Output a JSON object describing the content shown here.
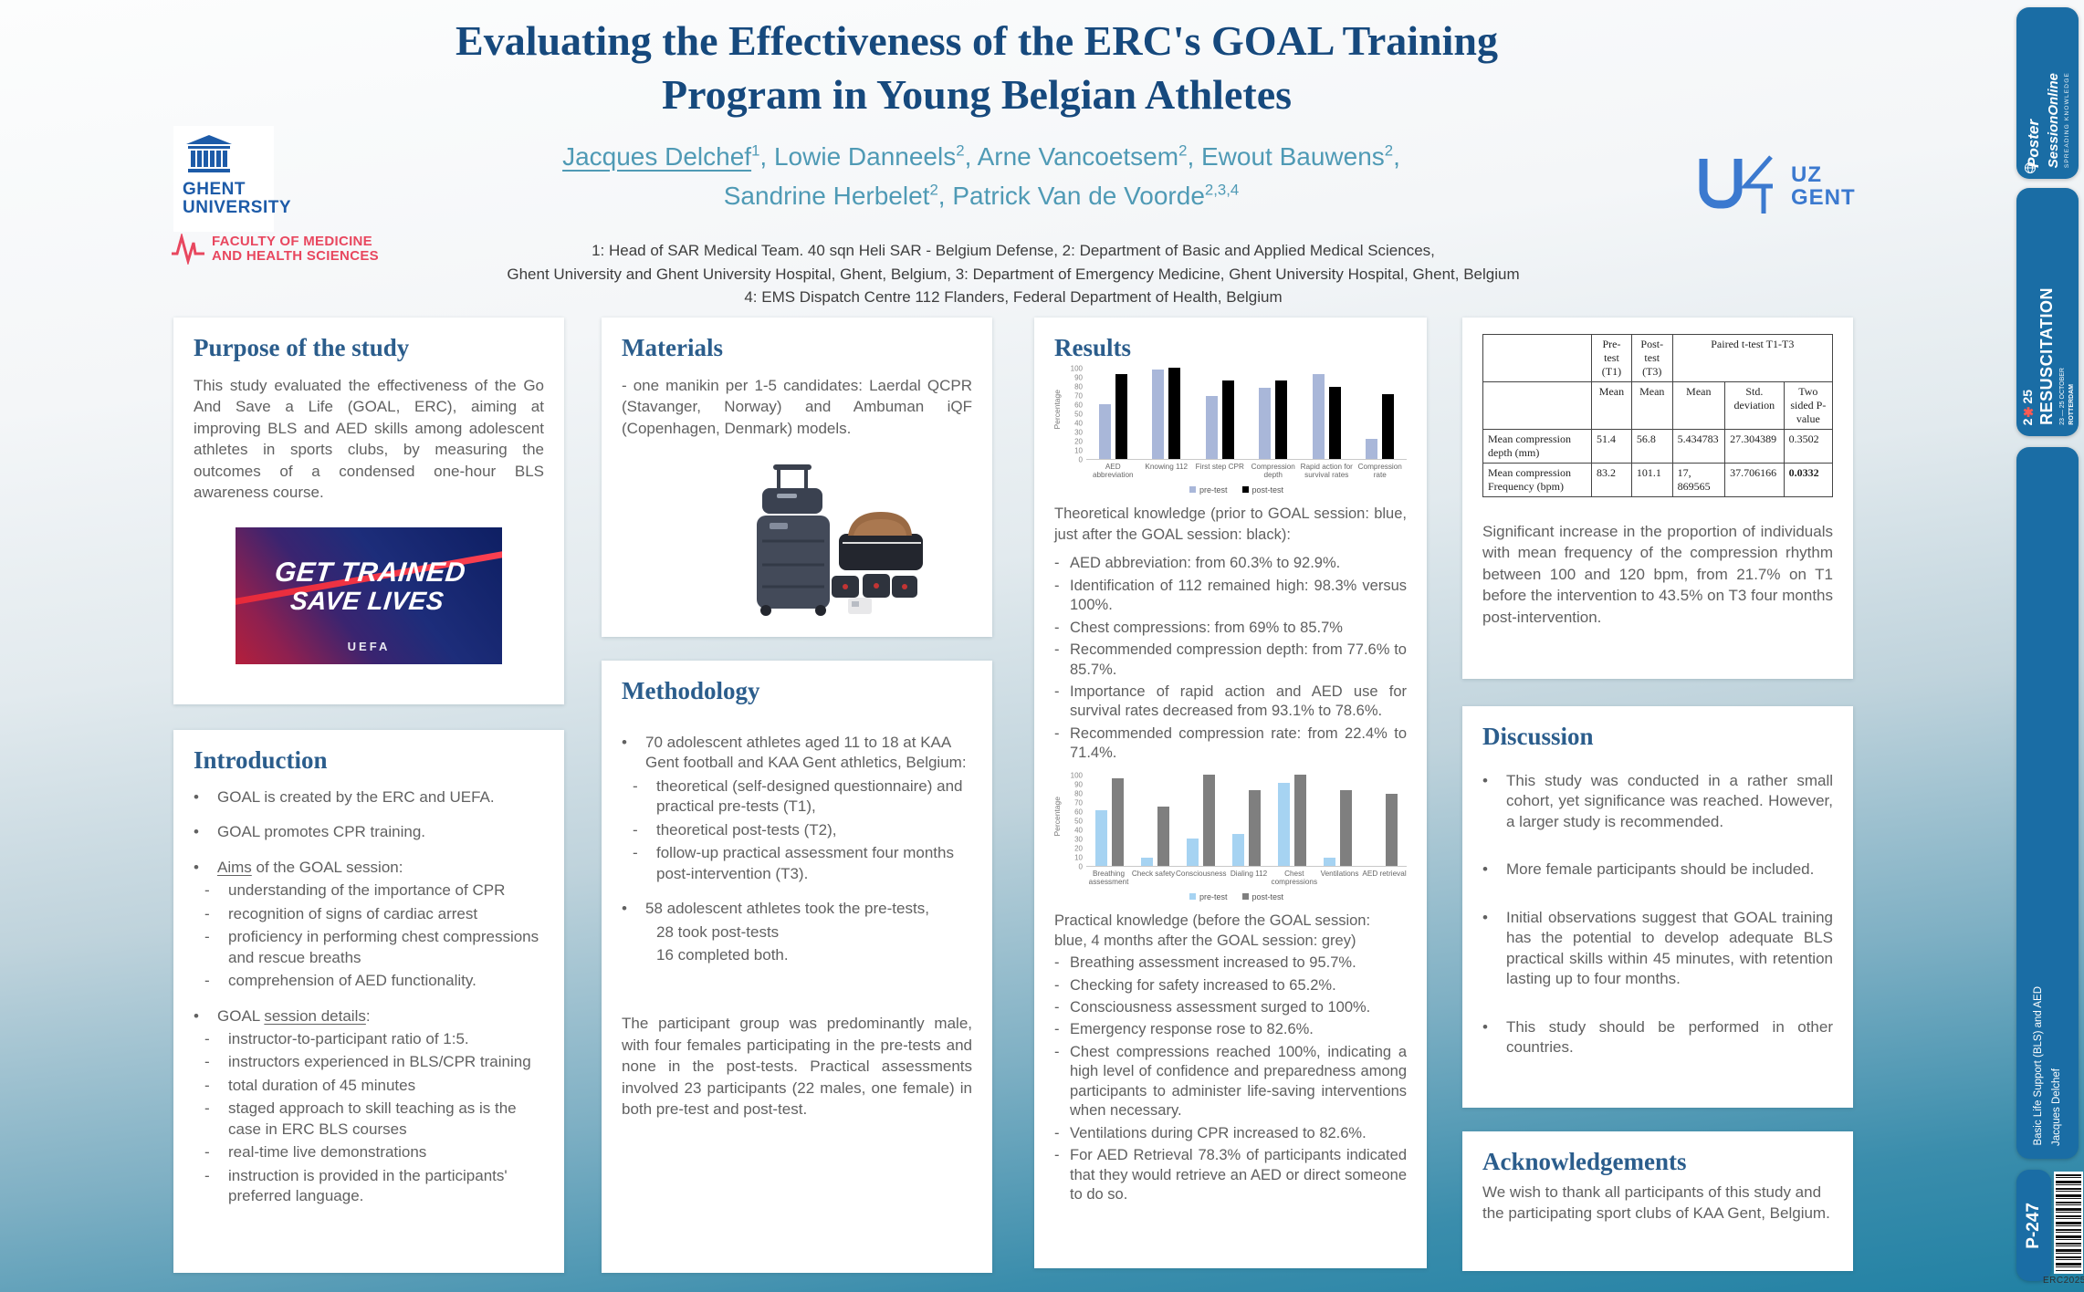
{
  "header": {
    "title_line1": "Evaluating the Effectiveness of the ERC's GOAL Training",
    "title_line2": "Program in Young Belgian Athletes",
    "authors": {
      "line1": [
        {
          "name": "Jacques Delchef",
          "sup": "1",
          "underline": true
        },
        {
          "name": "Lowie Danneels",
          "sup": "2"
        },
        {
          "name": "Arne Vancoetsem",
          "sup": "2"
        },
        {
          "name": "Ewout Bauwens",
          "sup": "2"
        }
      ],
      "line1_trailing": ",",
      "line2": [
        {
          "name": "Sandrine Herbelet",
          "sup": "2"
        },
        {
          "name": "Patrick Van de Voorde",
          "sup": "2,3,4"
        }
      ]
    },
    "affiliations": {
      "line1": "1: Head of SAR Medical Team. 40 sqn Heli SAR - Belgium Defense, 2: Department of Basic and Applied Medical Sciences,",
      "line2": "Ghent University and Ghent University Hospital, Ghent, Belgium, 3: Department of Emergency Medicine, Ghent University Hospital, Ghent, Belgium",
      "line3": "4: EMS Dispatch Centre 112 Flanders, Federal Department of Health, Belgium"
    },
    "logos": {
      "ghent": {
        "line1": "GHENT",
        "line2": "UNIVERSITY",
        "faculty_line1": "FACULTY OF MEDICINE",
        "faculty_line2": "AND HEALTH SCIENCES"
      },
      "uzgent": {
        "line1": "UZ",
        "line2": "GENT"
      }
    }
  },
  "purpose": {
    "title": "Purpose of the study",
    "body": "This study evaluated the effectiveness of the Go And Save a Life (GOAL, ERC), aiming at improving BLS and AED skills among adolescent athletes in sports clubs, by measuring the outcomes of a condensed one-hour BLS awareness course.",
    "banner": {
      "line1": "GET TRAINED",
      "line2": "SAVE LIVES",
      "footer": "UEFA"
    }
  },
  "introduction": {
    "title": "Introduction",
    "items": [
      {
        "m": "•",
        "t": "GOAL is  created by the ERC and UEFA."
      },
      {
        "m": "•",
        "t": "GOAL promotes CPR training.",
        "gap": true
      },
      {
        "m": "•",
        "seg": [
          {
            "u": "Aims"
          },
          " of the GOAL session:"
        ],
        "gap": true
      },
      {
        "m": "-",
        "t": "understanding of the importance of CPR",
        "indent": 1
      },
      {
        "m": "-",
        "t": "recognition of signs of cardiac arrest",
        "indent": 1
      },
      {
        "m": "-",
        "t": "proficiency in performing chest compressions and rescue breaths",
        "indent": 1
      },
      {
        "m": "-",
        "t": "comprehension of AED functionality.",
        "indent": 1
      },
      {
        "m": "•",
        "seg": [
          "GOAL ",
          {
            "u": "session details"
          },
          ":"
        ],
        "gap": true
      },
      {
        "m": "-",
        "t": "instructor-to-participant ratio of 1:5.",
        "indent": 1
      },
      {
        "m": "-",
        "t": "instructors experienced in BLS/CPR training",
        "indent": 1
      },
      {
        "m": "-",
        "t": "total duration of 45 minutes",
        "indent": 1
      },
      {
        "m": "-",
        "t": "staged approach to skill teaching as is the case in ERC BLS courses",
        "indent": 1
      },
      {
        "m": "-",
        "t": "real-time live demonstrations",
        "indent": 1
      },
      {
        "m": "-",
        "t": "instruction is provided in the participants' preferred language.",
        "indent": 1
      }
    ]
  },
  "materials": {
    "title": "Materials",
    "body": "- one manikin per 1-5 candidates: Laerdal QCPR (Stavanger, Norway) and Ambuman iQF (Copenhagen, Denmark) models."
  },
  "methodology": {
    "title": "Methodology",
    "items": [
      {
        "m": "•",
        "t": "70 adolescent athletes aged 11 to 18 at KAA Gent football and KAA Gent athletics, Belgium:"
      },
      {
        "m": "-",
        "t": "theoretical (self-designed questionnaire) and practical pre-tests (T1),",
        "indent": 1
      },
      {
        "m": "-",
        "t": "theoretical post-tests (T2),",
        "indent": 1
      },
      {
        "m": "-",
        "t": "follow-up practical assessment four months post-intervention (T3).",
        "indent": 1
      },
      {
        "m": "•",
        "t": "58 adolescent athletes took the pre-tests,",
        "gap": true
      },
      {
        "m": "",
        "t": "28 took post-tests",
        "indent": 1
      },
      {
        "m": "",
        "t": "16 completed both.",
        "indent": 1
      }
    ],
    "paragraph": "The participant group was predominantly male, with four females participating in the pre-tests and none in the post-tests. Practical assessments involved 23 participants (22 males, one female) in both pre-test and post-test."
  },
  "results": {
    "title": "Results",
    "theoretical_intro": "Theoretical knowledge (prior to GOAL session: blue, just after the GOAL session: black):",
    "theoretical_items": [
      {
        "m": "-",
        "t": "AED abbreviation: from 60.3% to 92.9%."
      },
      {
        "m": "-",
        "t": "Identification of 112 remained high: 98.3% versus 100%."
      },
      {
        "m": "-",
        "t": "Chest compressions: from 69% to 85.7%"
      },
      {
        "m": "-",
        "t": "Recommended compression depth: from 77.6% to 85.7%."
      },
      {
        "m": "-",
        "t": "Importance of rapid action and AED use for survival rates decreased from 93.1% to 78.6%."
      },
      {
        "m": "-",
        "t": "Recommended compression rate: from 22.4% to 71.4%."
      }
    ],
    "practical_intro": "Practical knowledge (before the GOAL session: blue, 4 months after the GOAL session: grey)",
    "practical_items": [
      {
        "m": "-",
        "t": "Breathing assessment increased  to 95.7%."
      },
      {
        "m": "-",
        "t": "Checking for safety increased to 65.2%."
      },
      {
        "m": "-",
        "t": "Consciousness assessment surged to 100%."
      },
      {
        "m": "-",
        "t": "Emergency response rose to 82.6%."
      },
      {
        "m": "-",
        "t": "Chest compressions reached 100%, indicating a high level of confidence and preparedness among participants to administer life-saving interventions when necessary."
      },
      {
        "m": "-",
        "t": "Ventilations during CPR increased to 82.6%."
      },
      {
        "m": "-",
        "t": "For AED Retrieval 78.3% of participants indicated that they would retrieve an AED or direct someone to do so."
      }
    ]
  },
  "stats": {
    "table": {
      "top_header": [
        "",
        "Pre-test (T1)",
        "Post-test (T3)",
        "Paired t-test  T1-T3"
      ],
      "top_colspans": [
        1,
        1,
        1,
        3
      ],
      "sub_header": [
        "",
        "Mean",
        "Mean",
        "Mean",
        "Std. deviation",
        "Two sided P-value"
      ],
      "rows": [
        [
          "Mean compression depth (mm)",
          "51.4",
          "56.8",
          "5.434783",
          "27.304389",
          "0.3502"
        ],
        [
          "Mean compression Frequency (bpm)",
          "83.2",
          "101.1",
          "17, 869565",
          "37.706166",
          {
            "v": "0.0332",
            "b": true
          }
        ]
      ]
    },
    "paragraph": "Significant increase in the proportion of individuals with mean frequency of the compression rhythm between 100 and 120 bpm, from 21.7% on T1 before the intervention to 43.5% on T3 four months post-intervention."
  },
  "discussion": {
    "title": "Discussion",
    "items": [
      {
        "m": "•",
        "t": "This study was conducted in a rather small cohort, yet significance was reached. However, a larger study is recommended."
      },
      {
        "m": "•",
        "t": "More female participants should be included."
      },
      {
        "m": "•",
        "t": "Initial observations suggest that GOAL training has the potential to develop adequate BLS practical skills within 45 minutes, with retention lasting up to four months."
      },
      {
        "m": "•",
        "t": "This study should be performed in other countries."
      }
    ]
  },
  "acknowledgements": {
    "title": "Acknowledgements",
    "body": "We wish to thank all participants of this study and the participating sport clubs of KAA Gent, Belgium."
  },
  "sidebar": {
    "badge1": {
      "line1": "Poster",
      "line2": "SessionOnline",
      "tagline": "SPREADING KNOWLEDGE"
    },
    "badge2": {
      "year_left": "2",
      "star": "✱",
      "year_right": "25",
      "name": "RESUSCITATION",
      "dates": "23 — 25 OCTOBER",
      "city": "ROTTERDAM"
    },
    "badge3": {
      "topic": "Basic Life Support (BLS) and AED",
      "author": "Jacques Delchef"
    },
    "badge4": {
      "code": "P-247",
      "footer": "ERC2025"
    }
  },
  "colors": {
    "badge_blue": "#1a6da5",
    "bottom_teal": "#2181a4",
    "title_blue": "#16497d",
    "heading_blue": "#2b5d8c",
    "authors_teal": "#4f9ab5",
    "ghent_blue": "#1d5ba8",
    "faculty_red": "#e8475f",
    "uz_blue": "#3b79cf"
  },
  "chart_data": [
    {
      "type": "bar",
      "title": "Theoretical knowledge pre/post GOAL session",
      "categories": [
        "AED abbreviation",
        "Knowing 112",
        "First step CPR",
        "Compression depth",
        "Rapid action for survival rates",
        "Compression rate"
      ],
      "series": [
        {
          "name": "pre-test",
          "color": "#a9b7d9",
          "values": [
            60.3,
            98.3,
            69,
            77.6,
            93.1,
            22.4
          ]
        },
        {
          "name": "post-test",
          "color": "#000000",
          "values": [
            92.9,
            100,
            85.7,
            85.7,
            78.6,
            71.4
          ]
        }
      ],
      "xlabel": "",
      "ylabel": "Percentage",
      "ylim": [
        0,
        100
      ],
      "ytick": 10,
      "grid": false,
      "legend_position": "bottom"
    },
    {
      "type": "bar",
      "title": "Practical knowledge before / 4 months after GOAL session",
      "categories": [
        "Breathing assessment",
        "Check safety",
        "Consciousness",
        "Dialing 112",
        "Chest compressions",
        "Ventilations",
        "AED retrieval"
      ],
      "series": [
        {
          "name": "pre-test",
          "color": "#a6d3f2",
          "values": [
            61,
            9,
            30,
            35,
            91,
            9,
            0
          ]
        },
        {
          "name": "post-test",
          "color": "#7f7f7f",
          "values": [
            95.7,
            65.2,
            100,
            82.6,
            100,
            82.6,
            78.3
          ]
        }
      ],
      "xlabel": "",
      "ylabel": "Percentage",
      "ylim": [
        0,
        100
      ],
      "ytick": 10,
      "grid": false,
      "legend_position": "bottom"
    }
  ]
}
